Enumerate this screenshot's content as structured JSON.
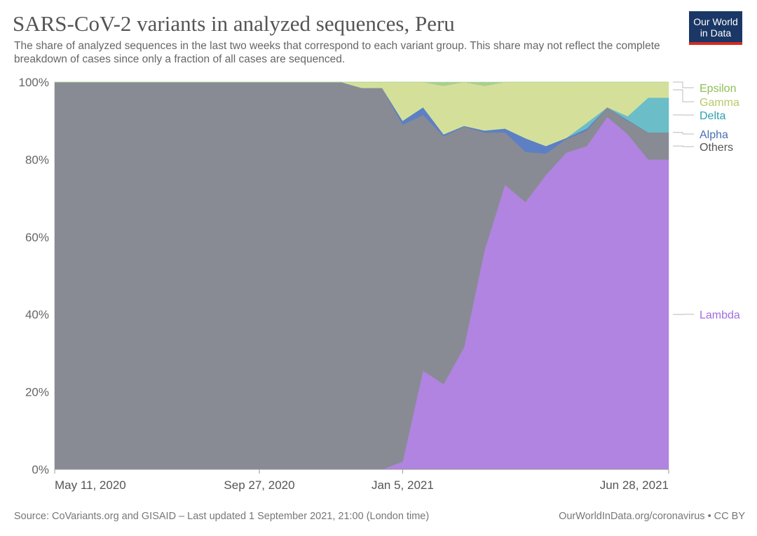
{
  "header": {
    "title": "SARS-CoV-2 variants in analyzed sequences, Peru",
    "subtitle": "The share of analyzed sequences in the last two weeks that correspond to each variant group. This share may not reflect the complete breakdown of cases since only a fraction of all cases are sequenced.",
    "logo_line1": "Our World",
    "logo_line2": "in Data"
  },
  "footer": {
    "source": "Source: CoVariants.org and GISAID – Last updated 1 September 2021, 21:00 (London time)",
    "credit": "OurWorldInData.org/coronavirus • CC BY"
  },
  "chart_data": {
    "type": "area",
    "stacked": true,
    "title": "SARS-CoV-2 variants in analyzed sequences, Peru",
    "ylabel": "",
    "xlabel": "",
    "ylim": [
      0,
      100
    ],
    "y_ticks": [
      0,
      20,
      40,
      60,
      80,
      100
    ],
    "y_tick_labels": [
      "0%",
      "20%",
      "40%",
      "60%",
      "80%",
      "100%"
    ],
    "x_tick_labels": [
      "May 11, 2020",
      "Sep 27, 2020",
      "Jan 5, 2021",
      "Jun 28, 2021"
    ],
    "x_tick_index": [
      0,
      10,
      17,
      30
    ],
    "x": [
      "2020-05-11",
      "2020-05-25",
      "2020-06-08",
      "2020-06-22",
      "2020-07-06",
      "2020-07-20",
      "2020-08-03",
      "2020-08-17",
      "2020-08-31",
      "2020-09-14",
      "2020-09-27",
      "2020-10-12",
      "2020-10-26",
      "2020-11-09",
      "2020-11-23",
      "2020-12-07",
      "2020-12-21",
      "2021-01-05",
      "2021-01-18",
      "2021-02-01",
      "2021-02-15",
      "2021-03-01",
      "2021-03-15",
      "2021-03-29",
      "2021-04-12",
      "2021-04-26",
      "2021-05-10",
      "2021-05-24",
      "2021-06-07",
      "2021-06-21",
      "2021-06-28"
    ],
    "series": [
      {
        "name": "Lambda",
        "color": "#b084e0",
        "label_color": "#a06ee0",
        "values": [
          0,
          0,
          0,
          0,
          0,
          0,
          0,
          0,
          0,
          0,
          0,
          0,
          0,
          0,
          0,
          0,
          0,
          2,
          25.5,
          22,
          31.5,
          56.5,
          73.5,
          69,
          76,
          81.8,
          83.5,
          91,
          86.5,
          80,
          80
        ]
      },
      {
        "name": "Others",
        "color": "#888b94",
        "label_color": "#555555",
        "values": [
          100,
          100,
          100,
          100,
          100,
          100,
          100,
          100,
          100,
          100,
          100,
          100,
          100,
          100,
          100,
          98.5,
          98.5,
          87,
          66,
          64,
          57,
          30.5,
          13.5,
          13,
          5.5,
          3.5,
          4,
          2.5,
          3.5,
          7,
          7
        ]
      },
      {
        "name": "Alpha",
        "color": "#5d7fc4",
        "label_color": "#4a6fb5",
        "values": [
          0,
          0,
          0,
          0,
          0,
          0,
          0,
          0,
          0,
          0,
          0,
          0,
          0,
          0,
          0,
          0,
          0,
          1,
          2,
          0.5,
          0.2,
          0.5,
          1,
          3.5,
          2,
          0.3,
          0.5,
          0,
          0.2,
          0,
          0
        ]
      },
      {
        "name": "Delta",
        "color": "#6bbec8",
        "label_color": "#2f9fae",
        "values": [
          0,
          0,
          0,
          0,
          0,
          0,
          0,
          0,
          0,
          0,
          0,
          0,
          0,
          0,
          0,
          0,
          0,
          0,
          0,
          0,
          0,
          0,
          0,
          0,
          0,
          0,
          1.5,
          0,
          1,
          9,
          9
        ]
      },
      {
        "name": "Gamma",
        "color": "#d4e09a",
        "label_color": "#b8c86a",
        "values": [
          0,
          0,
          0,
          0,
          0,
          0,
          0,
          0,
          0,
          0,
          0,
          0,
          0,
          0,
          0,
          1.5,
          1.5,
          10,
          6.5,
          12.5,
          11.3,
          11.5,
          12,
          14.5,
          16.5,
          14.4,
          10.5,
          6.5,
          8.8,
          4,
          4
        ]
      },
      {
        "name": "Epsilon",
        "color": "#a9d08e",
        "label_color": "#8cc056",
        "values": [
          0,
          0,
          0,
          0,
          0,
          0,
          0,
          0,
          0,
          0,
          0,
          0,
          0,
          0,
          0,
          0,
          0,
          0,
          0,
          1,
          0,
          1,
          0,
          0,
          0,
          0,
          0,
          0,
          0,
          0,
          0
        ]
      }
    ]
  }
}
